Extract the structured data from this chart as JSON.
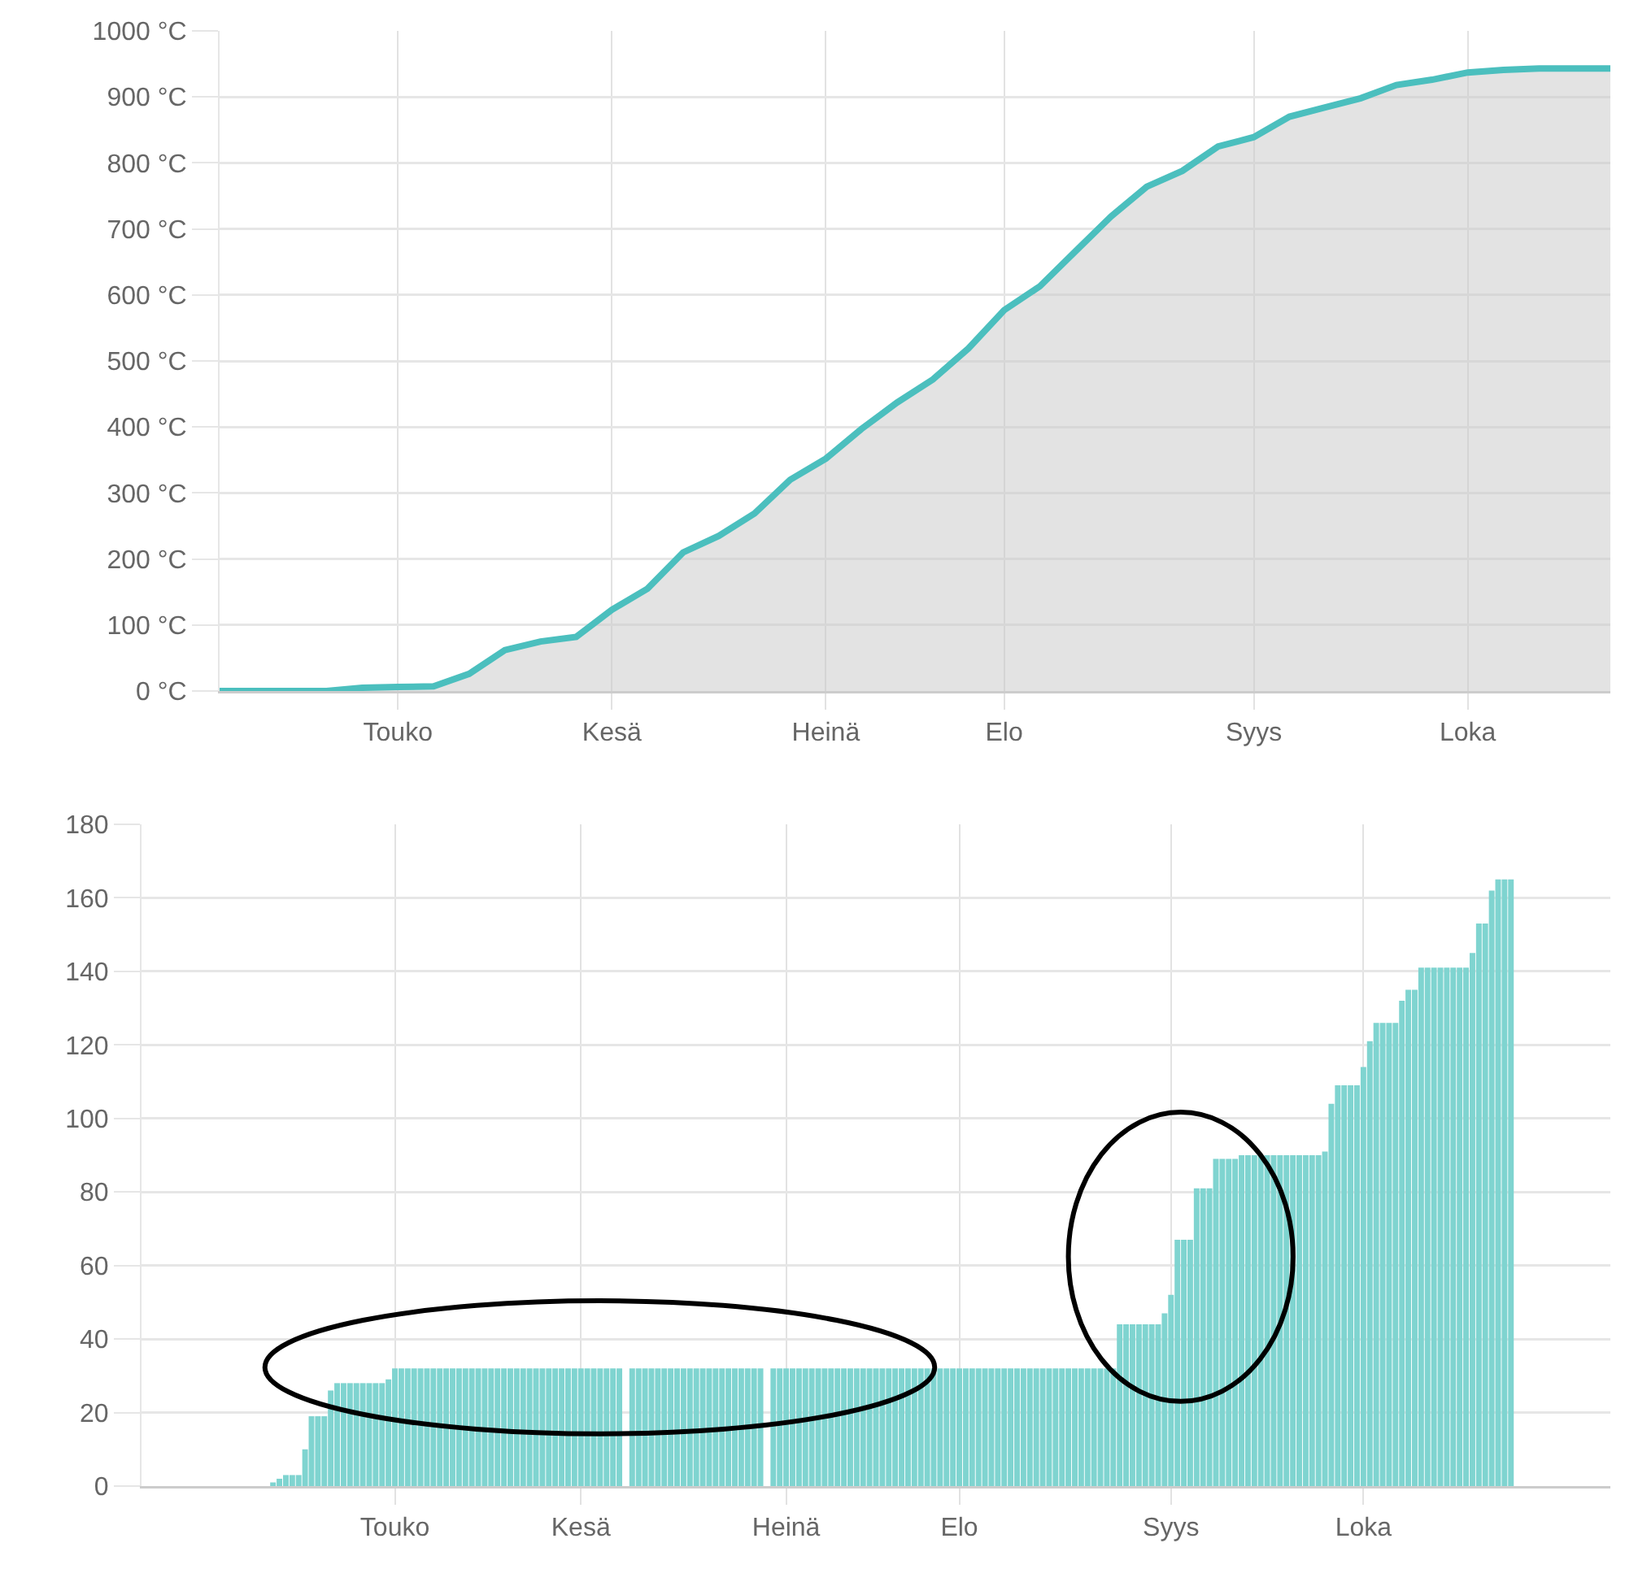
{
  "chart_data": [
    {
      "type": "area",
      "color": "#4bbfbe",
      "categories": [
        null,
        null,
        null,
        null,
        null,
        "Touko",
        null,
        null,
        null,
        null,
        null,
        "Kesä",
        null,
        null,
        null,
        null,
        null,
        "Heinä",
        null,
        null,
        null,
        null,
        "Elo",
        null,
        null,
        null,
        null,
        null,
        null,
        "Syys",
        null,
        null,
        null,
        null,
        null,
        "Loka",
        null,
        null,
        null,
        null
      ],
      "values": [
        0,
        0,
        0,
        0,
        5,
        6,
        7,
        26,
        62,
        75,
        82,
        123,
        155,
        210,
        235,
        269,
        320,
        352,
        397,
        437,
        472,
        519,
        577,
        613,
        666,
        719,
        764,
        788,
        825,
        839,
        870,
        884,
        898,
        918,
        926,
        937,
        941,
        943,
        943,
        943
      ],
      "ylim": [
        0,
        1000
      ],
      "yticks": [
        {
          "value": 0,
          "label": "0 °C"
        },
        {
          "value": 100,
          "label": "100 °C"
        },
        {
          "value": 200,
          "label": "200 °C"
        },
        {
          "value": 300,
          "label": "300 °C"
        },
        {
          "value": 400,
          "label": "400 °C"
        },
        {
          "value": 500,
          "label": "500 °C"
        },
        {
          "value": 600,
          "label": "600 °C"
        },
        {
          "value": 700,
          "label": "700 °C"
        },
        {
          "value": 800,
          "label": "800 °C"
        },
        {
          "value": 900,
          "label": "900 °C"
        },
        {
          "value": 1000,
          "label": "1000 °C"
        }
      ],
      "grid": true
    },
    {
      "type": "bar",
      "color": "#7fd4d0",
      "categories": [
        null,
        null,
        null,
        null,
        null,
        null,
        null,
        null,
        null,
        null,
        null,
        null,
        null,
        null,
        null,
        null,
        null,
        null,
        null,
        null,
        null,
        null,
        null,
        null,
        null,
        null,
        null,
        null,
        null,
        null,
        null,
        null,
        null,
        null,
        null,
        null,
        null,
        null,
        null,
        "Touko",
        null,
        null,
        null,
        null,
        null,
        null,
        null,
        null,
        null,
        null,
        null,
        null,
        null,
        null,
        null,
        null,
        null,
        null,
        null,
        null,
        null,
        null,
        null,
        null,
        null,
        null,
        null,
        null,
        "Kesä",
        null,
        null,
        null,
        null,
        null,
        null,
        null,
        null,
        null,
        null,
        null,
        null,
        null,
        null,
        null,
        null,
        null,
        null,
        null,
        null,
        null,
        null,
        null,
        null,
        null,
        null,
        null,
        null,
        null,
        null,
        null,
        "Heinä",
        null,
        null,
        null,
        null,
        null,
        null,
        null,
        null,
        null,
        null,
        null,
        null,
        null,
        null,
        null,
        null,
        null,
        null,
        null,
        null,
        null,
        null,
        null,
        null,
        null,
        null,
        "Elo",
        null,
        null,
        null,
        null,
        null,
        null,
        null,
        null,
        null,
        null,
        null,
        null,
        null,
        null,
        null,
        null,
        null,
        null,
        null,
        null,
        null,
        null,
        null,
        null,
        null,
        null,
        null,
        null,
        null,
        null,
        null,
        null,
        "Syys",
        null,
        null,
        null,
        null,
        null,
        null,
        null,
        null,
        null,
        null,
        null,
        null,
        null,
        null,
        null,
        null,
        null,
        null,
        null,
        null,
        null,
        null,
        null,
        null,
        null,
        null,
        null,
        null,
        null,
        "Loka",
        null,
        null,
        null,
        null,
        null,
        null,
        null,
        null,
        null,
        null,
        null,
        null,
        null,
        null,
        null,
        null,
        null,
        null,
        null,
        null,
        null,
        null,
        null,
        null,
        null,
        null,
        null,
        null,
        null,
        null,
        null,
        null,
        null,
        null,
        null,
        null,
        null,
        null
      ],
      "values": [
        null,
        null,
        null,
        null,
        null,
        null,
        null,
        null,
        null,
        null,
        null,
        null,
        null,
        null,
        0,
        0,
        0,
        0,
        0,
        0,
        1,
        2,
        3,
        3,
        3,
        10,
        19,
        19,
        19,
        26,
        28,
        28,
        28,
        28,
        28,
        28,
        28,
        28,
        29,
        32,
        32,
        32,
        32,
        32,
        32,
        32,
        32,
        32,
        32,
        32,
        32,
        32,
        32,
        32,
        32,
        32,
        32,
        32,
        32,
        32,
        32,
        32,
        32,
        32,
        32,
        32,
        32,
        32,
        32,
        32,
        32,
        32,
        32,
        32,
        32,
        null,
        32,
        32,
        32,
        32,
        32,
        32,
        32,
        32,
        32,
        32,
        32,
        32,
        32,
        32,
        32,
        32,
        32,
        32,
        32,
        32,
        32,
        null,
        32,
        32,
        32,
        32,
        32,
        32,
        32,
        32,
        32,
        32,
        32,
        32,
        32,
        32,
        32,
        32,
        32,
        32,
        32,
        32,
        32,
        32,
        32,
        32,
        32,
        32,
        32,
        32,
        32,
        32,
        32,
        32,
        32,
        32,
        32,
        32,
        32,
        32,
        32,
        32,
        32,
        32,
        32,
        32,
        32,
        32,
        32,
        32,
        32,
        32,
        32,
        32,
        32,
        32,
        44,
        44,
        44,
        44,
        44,
        44,
        44,
        47,
        52,
        67,
        67,
        67,
        81,
        81,
        81,
        89,
        89,
        89,
        89,
        90,
        90,
        90,
        90,
        90,
        90,
        90,
        90,
        90,
        90,
        90,
        90,
        90,
        91,
        104,
        109,
        109,
        109,
        109,
        114,
        121,
        126,
        126,
        126,
        126,
        132,
        135,
        135,
        141,
        141,
        141,
        141,
        141,
        141,
        141,
        141,
        145,
        153,
        153,
        162,
        165,
        165,
        165,
        null,
        null,
        null,
        null,
        null,
        null,
        null,
        null,
        null,
        null,
        null,
        null,
        null,
        null,
        null
      ],
      "ylim": [
        0,
        180
      ],
      "yticks": [
        0,
        20,
        40,
        60,
        80,
        100,
        120,
        140,
        160,
        180
      ],
      "grid": true
    }
  ]
}
